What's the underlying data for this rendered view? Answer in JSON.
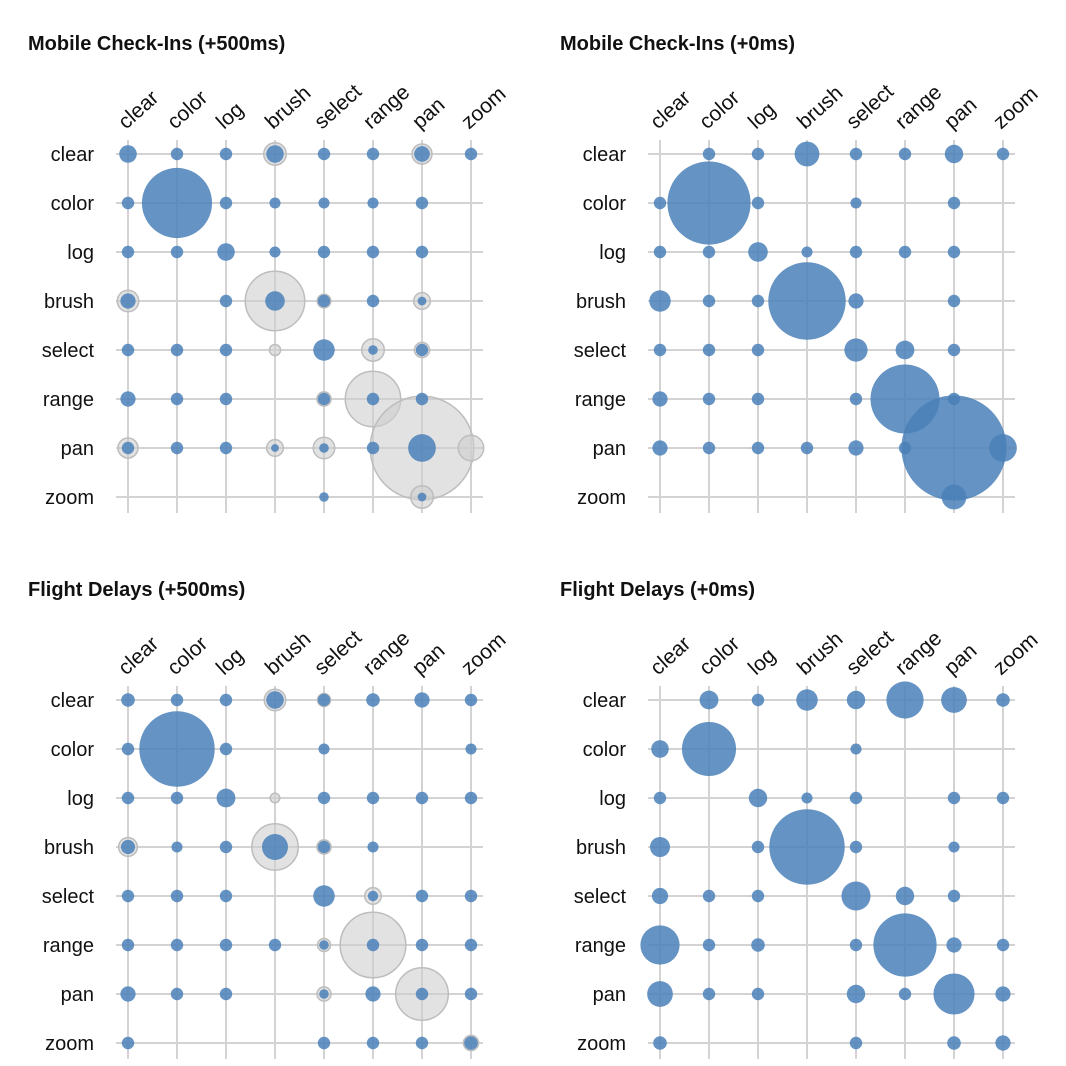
{
  "colors": {
    "observed": "#4a80b8",
    "expected": "#cfcfcf",
    "expected_stroke": "#bdbdbd",
    "grid": "#d3d3d3"
  },
  "chart_data": [
    {
      "type": "bubble-matrix",
      "title": "Mobile Check-Ins (+500ms)",
      "columns": [
        "clear",
        "color",
        "log",
        "brush",
        "select",
        "range",
        "pan",
        "zoom"
      ],
      "rows": [
        "clear",
        "color",
        "log",
        "brush",
        "select",
        "range",
        "pan",
        "zoom"
      ],
      "series": [
        {
          "values": [
            [
              2,
              1,
              1,
              2,
              1,
              1,
              1.6,
              1
            ],
            [
              1,
              32,
              1,
              0.8,
              0.8,
              0.8,
              1,
              0
            ],
            [
              1,
              1,
              2,
              0.8,
              1,
              1,
              1,
              0
            ],
            [
              1.5,
              0,
              1,
              2.5,
              1,
              1,
              0.5,
              0
            ],
            [
              1,
              1,
              1,
              0,
              3,
              0.6,
              1,
              0
            ],
            [
              1.5,
              1,
              1,
              0,
              1,
              1,
              1,
              0
            ],
            [
              1,
              1,
              1,
              0.4,
              0.6,
              1,
              5,
              0
            ],
            [
              0,
              0,
              0,
              0,
              0.6,
              0,
              0.5,
              0
            ]
          ]
        },
        {
          "values": [
            [
              0,
              0,
              0,
              3.3,
              0,
              0,
              2.6,
              0
            ],
            [
              0,
              0,
              0,
              0,
              0,
              0,
              0,
              0
            ],
            [
              0,
              0,
              0,
              0,
              0,
              0,
              0,
              0
            ],
            [
              3,
              0,
              0,
              23,
              1.2,
              0,
              1.8,
              0
            ],
            [
              0,
              0,
              0,
              0.8,
              0,
              3.3,
              1.5,
              0
            ],
            [
              0,
              0,
              0,
              0,
              1.3,
              20,
              0,
              0
            ],
            [
              2.6,
              0,
              0,
              1.8,
              3,
              0,
              70,
              4.2
            ],
            [
              0,
              0,
              0,
              0,
              0,
              0,
              3.3,
              0
            ]
          ]
        }
      ]
    },
    {
      "type": "bubble-matrix",
      "title": "Mobile Check-Ins (+0ms)",
      "columns": [
        "clear",
        "color",
        "log",
        "brush",
        "select",
        "range",
        "pan",
        "zoom"
      ],
      "rows": [
        "clear",
        "color",
        "log",
        "brush",
        "select",
        "range",
        "pan",
        "zoom"
      ],
      "series": [
        {
          "values": [
            [
              0,
              1,
              1,
              4,
              1,
              1,
              2.2,
              1
            ],
            [
              1,
              45,
              1,
              0,
              0.8,
              0,
              1,
              0
            ],
            [
              1,
              1,
              2.5,
              0.8,
              1,
              1,
              1,
              0
            ],
            [
              3,
              1,
              1,
              39,
              1.5,
              0,
              1,
              0
            ],
            [
              1,
              1,
              1,
              0,
              3.5,
              2.3,
              1,
              0
            ],
            [
              1.5,
              1,
              1,
              0,
              1,
              31,
              1,
              0
            ],
            [
              1.5,
              1,
              1,
              1,
              1.5,
              1,
              72,
              5
            ],
            [
              0,
              0,
              0,
              0,
              0,
              0,
              4,
              0
            ]
          ]
        }
      ]
    },
    {
      "type": "bubble-matrix",
      "title": "Flight Delays (+500ms)",
      "columns": [
        "clear",
        "color",
        "log",
        "brush",
        "select",
        "range",
        "pan",
        "zoom"
      ],
      "rows": [
        "clear",
        "color",
        "log",
        "brush",
        "select",
        "range",
        "pan",
        "zoom"
      ],
      "series": [
        {
          "values": [
            [
              1.2,
              1,
              1,
              2,
              1,
              1.2,
              1.5,
              1
            ],
            [
              1,
              37,
              1,
              0,
              0.8,
              0,
              0,
              0.8
            ],
            [
              1,
              1,
              2.3,
              0,
              1,
              1,
              1,
              1
            ],
            [
              1.3,
              0.8,
              1,
              4.4,
              1,
              0.8,
              0,
              0
            ],
            [
              1,
              1,
              1,
              0,
              3,
              0.7,
              1,
              1
            ],
            [
              1,
              1,
              1,
              1,
              0.6,
              1,
              1,
              1
            ],
            [
              1.5,
              1,
              1,
              0,
              0.6,
              1.5,
              1,
              1
            ],
            [
              1,
              0,
              0,
              0,
              1,
              1,
              1,
              1.2
            ]
          ]
        },
        {
          "values": [
            [
              0,
              0,
              0,
              3,
              1.1,
              0,
              0,
              0
            ],
            [
              0,
              0,
              0,
              0,
              0,
              0,
              0,
              0
            ],
            [
              0,
              0,
              0,
              0.6,
              0,
              0,
              0,
              0
            ],
            [
              2.3,
              0,
              0,
              14,
              1.3,
              0,
              0,
              0
            ],
            [
              0,
              0,
              0,
              0,
              0,
              1.8,
              0,
              0
            ],
            [
              0,
              0,
              0,
              0,
              1.1,
              28,
              0,
              0
            ],
            [
              0,
              0,
              0,
              0,
              1.3,
              0,
              18,
              0
            ],
            [
              0,
              0,
              0,
              0,
              0,
              0,
              0,
              1.5
            ]
          ]
        }
      ]
    },
    {
      "type": "bubble-matrix",
      "title": "Flight Delays (+0ms)",
      "columns": [
        "clear",
        "color",
        "log",
        "brush",
        "select",
        "range",
        "pan",
        "zoom"
      ],
      "rows": [
        "clear",
        "color",
        "log",
        "brush",
        "select",
        "range",
        "pan",
        "zoom"
      ],
      "series": [
        {
          "values": [
            [
              0,
              2.3,
              1,
              3,
              2.2,
              9,
              4.3,
              1.2
            ],
            [
              2,
              19,
              0,
              0,
              0.8,
              0,
              0,
              0
            ],
            [
              1,
              0,
              2.2,
              0.8,
              1,
              0,
              1,
              1
            ],
            [
              2.6,
              0,
              1,
              37,
              1,
              0,
              0.8,
              0
            ],
            [
              1.7,
              1,
              1,
              0,
              5.5,
              2.2,
              1,
              0
            ],
            [
              10,
              1,
              1.2,
              0,
              1,
              26,
              1.5,
              1
            ],
            [
              4.3,
              1,
              1,
              0,
              2.2,
              1,
              11,
              1.5
            ],
            [
              1.2,
              0,
              0,
              0,
              1,
              0,
              1.2,
              1.5
            ]
          ]
        }
      ]
    }
  ]
}
